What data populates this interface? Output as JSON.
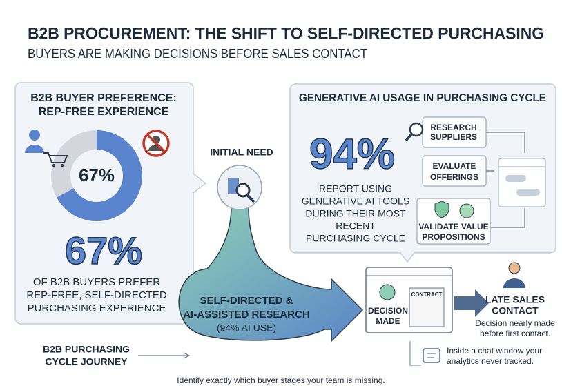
{
  "header": {
    "title": "B2B PROCUREMENT: THE SHIFT TO SELF-DIRECTED PURCHASING",
    "subtitle": "BUYERS ARE MAKING DECISIONS BEFORE SALES CONTACT"
  },
  "left_panel": {
    "title": [
      "B2B BUYER PREFERENCE:",
      "REP-FREE EXPERIENCE"
    ],
    "donut": {
      "value": 67,
      "label": "67%"
    },
    "stat": "67%",
    "description": [
      "OF B2B BUYERS PREFER",
      "REP-FREE, SELF-DIRECTED",
      "PURCHASING EXPERIENCE"
    ]
  },
  "initial_need": "INITIAL NEED",
  "right_panel": {
    "title": "GENERATIVE AI USAGE IN PURCHASING CYCLE",
    "stat": "94%",
    "description": [
      "REPORT USING",
      "GENERATIVE AI TOOLS",
      "DURING THEIR MOST",
      "RECENT",
      "PURCHASING CYCLE"
    ],
    "steps": [
      [
        "RESEARCH",
        "SUPPLIERS"
      ],
      [
        "EVALUATE",
        "OFFERINGS"
      ],
      [
        "VALIDATE VALUE",
        "PROPOSITIONS"
      ]
    ]
  },
  "research": [
    "SELF-DIRECTED &",
    "AI-ASSISTED RESEARCH",
    "(94% AI USE)"
  ],
  "decision": {
    "label": [
      "DECISION",
      "MADE"
    ],
    "document": "CONTRACT"
  },
  "late_contact": {
    "title": [
      "LATE SALES",
      "CONTACT"
    ],
    "note": [
      "Decision nearly made",
      "before first contact."
    ]
  },
  "chat_note": [
    "Inside a chat window your",
    "analytics never tracked."
  ],
  "journey": [
    "B2B PURCHASING",
    "CYCLE JOURNEY"
  ],
  "footer": "Identify exactly which buyer stages your team is missing."
}
